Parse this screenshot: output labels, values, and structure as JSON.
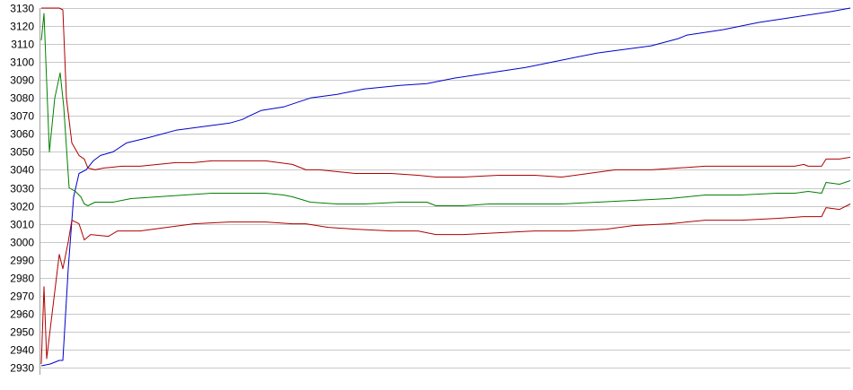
{
  "chart_data": {
    "type": "line",
    "title": "",
    "xlabel": "",
    "ylabel": "",
    "ylim": [
      2930,
      3130
    ],
    "yticks": [
      2930,
      2940,
      2950,
      2960,
      2970,
      2980,
      2990,
      3000,
      3010,
      3020,
      3030,
      3040,
      3050,
      3060,
      3070,
      3080,
      3090,
      3100,
      3110,
      3120,
      3130
    ],
    "grid": true,
    "legend": "none",
    "colors": {
      "grid": "#c8c8c8",
      "axis": "#a0a0a0",
      "blue": "#0000cc",
      "red": "#b00000",
      "green": "#008000"
    },
    "series": [
      {
        "color_key": "blue",
        "points": [
          [
            0,
            2931
          ],
          [
            10,
            2932
          ],
          [
            20,
            2934
          ],
          [
            24,
            2934
          ],
          [
            30,
            2985
          ],
          [
            36,
            3025
          ],
          [
            42,
            3038
          ],
          [
            50,
            3040
          ],
          [
            58,
            3045
          ],
          [
            66,
            3048
          ],
          [
            80,
            3050
          ],
          [
            95,
            3055
          ],
          [
            120,
            3058
          ],
          [
            150,
            3062
          ],
          [
            180,
            3064
          ],
          [
            210,
            3066
          ],
          [
            224,
            3068
          ],
          [
            232,
            3070
          ],
          [
            245,
            3073
          ],
          [
            270,
            3075
          ],
          [
            300,
            3080
          ],
          [
            330,
            3082
          ],
          [
            360,
            3085
          ],
          [
            400,
            3087
          ],
          [
            430,
            3088
          ],
          [
            460,
            3091
          ],
          [
            500,
            3094
          ],
          [
            540,
            3097
          ],
          [
            580,
            3101
          ],
          [
            620,
            3105
          ],
          [
            650,
            3107
          ],
          [
            680,
            3109
          ],
          [
            710,
            3113
          ],
          [
            720,
            3115
          ],
          [
            760,
            3118
          ],
          [
            800,
            3122
          ],
          [
            840,
            3125
          ],
          [
            880,
            3128
          ],
          [
            902,
            3130
          ]
        ]
      },
      {
        "color_key": "red",
        "points": [
          [
            0,
            3130
          ],
          [
            10,
            3130
          ],
          [
            20,
            3130
          ],
          [
            24,
            3129
          ],
          [
            28,
            3080
          ],
          [
            34,
            3055
          ],
          [
            42,
            3048
          ],
          [
            48,
            3046
          ],
          [
            52,
            3041
          ],
          [
            60,
            3040
          ],
          [
            70,
            3041
          ],
          [
            90,
            3042
          ],
          [
            110,
            3042
          ],
          [
            130,
            3043
          ],
          [
            150,
            3044
          ],
          [
            170,
            3044
          ],
          [
            190,
            3045
          ],
          [
            220,
            3045
          ],
          [
            250,
            3045
          ],
          [
            280,
            3043
          ],
          [
            295,
            3040
          ],
          [
            310,
            3040
          ],
          [
            350,
            3038
          ],
          [
            390,
            3038
          ],
          [
            420,
            3037
          ],
          [
            440,
            3036
          ],
          [
            470,
            3036
          ],
          [
            510,
            3037
          ],
          [
            550,
            3037
          ],
          [
            580,
            3036
          ],
          [
            610,
            3038
          ],
          [
            640,
            3040
          ],
          [
            680,
            3040
          ],
          [
            710,
            3041
          ],
          [
            740,
            3042
          ],
          [
            760,
            3042
          ],
          [
            780,
            3042
          ],
          [
            810,
            3042
          ],
          [
            840,
            3042
          ],
          [
            850,
            3043
          ],
          [
            855,
            3042
          ],
          [
            870,
            3042
          ],
          [
            875,
            3046
          ],
          [
            890,
            3046
          ],
          [
            902,
            3047
          ]
        ]
      },
      {
        "color_key": "green",
        "points": [
          [
            0,
            3112
          ],
          [
            3,
            3127
          ],
          [
            9,
            3050
          ],
          [
            15,
            3080
          ],
          [
            21,
            3094
          ],
          [
            25,
            3075
          ],
          [
            31,
            3030
          ],
          [
            38,
            3028
          ],
          [
            44,
            3025
          ],
          [
            48,
            3021
          ],
          [
            52,
            3020
          ],
          [
            60,
            3022
          ],
          [
            80,
            3022
          ],
          [
            100,
            3024
          ],
          [
            130,
            3025
          ],
          [
            160,
            3026
          ],
          [
            190,
            3027
          ],
          [
            220,
            3027
          ],
          [
            250,
            3027
          ],
          [
            270,
            3026
          ],
          [
            280,
            3025
          ],
          [
            300,
            3022
          ],
          [
            330,
            3021
          ],
          [
            360,
            3021
          ],
          [
            400,
            3022
          ],
          [
            430,
            3022
          ],
          [
            440,
            3020
          ],
          [
            470,
            3020
          ],
          [
            500,
            3021
          ],
          [
            540,
            3021
          ],
          [
            580,
            3021
          ],
          [
            620,
            3022
          ],
          [
            660,
            3023
          ],
          [
            700,
            3024
          ],
          [
            740,
            3026
          ],
          [
            780,
            3026
          ],
          [
            820,
            3027
          ],
          [
            840,
            3027
          ],
          [
            855,
            3028
          ],
          [
            870,
            3027
          ],
          [
            875,
            3033
          ],
          [
            890,
            3032
          ],
          [
            902,
            3034
          ]
        ]
      },
      {
        "color_key": "red",
        "points": [
          [
            0,
            2932
          ],
          [
            3,
            2975
          ],
          [
            6,
            2935
          ],
          [
            12,
            2960
          ],
          [
            20,
            2993
          ],
          [
            24,
            2985
          ],
          [
            30,
            3000
          ],
          [
            34,
            3012
          ],
          [
            42,
            3010
          ],
          [
            48,
            3001
          ],
          [
            55,
            3004
          ],
          [
            75,
            3003
          ],
          [
            85,
            3006
          ],
          [
            110,
            3006
          ],
          [
            140,
            3008
          ],
          [
            170,
            3010
          ],
          [
            210,
            3011
          ],
          [
            250,
            3011
          ],
          [
            280,
            3010
          ],
          [
            295,
            3010
          ],
          [
            320,
            3008
          ],
          [
            350,
            3007
          ],
          [
            390,
            3006
          ],
          [
            420,
            3006
          ],
          [
            440,
            3004
          ],
          [
            470,
            3004
          ],
          [
            510,
            3005
          ],
          [
            550,
            3006
          ],
          [
            590,
            3006
          ],
          [
            630,
            3007
          ],
          [
            660,
            3009
          ],
          [
            700,
            3010
          ],
          [
            740,
            3012
          ],
          [
            780,
            3012
          ],
          [
            820,
            3013
          ],
          [
            850,
            3014
          ],
          [
            870,
            3014
          ],
          [
            875,
            3019
          ],
          [
            890,
            3018
          ],
          [
            902,
            3021
          ]
        ]
      }
    ]
  }
}
